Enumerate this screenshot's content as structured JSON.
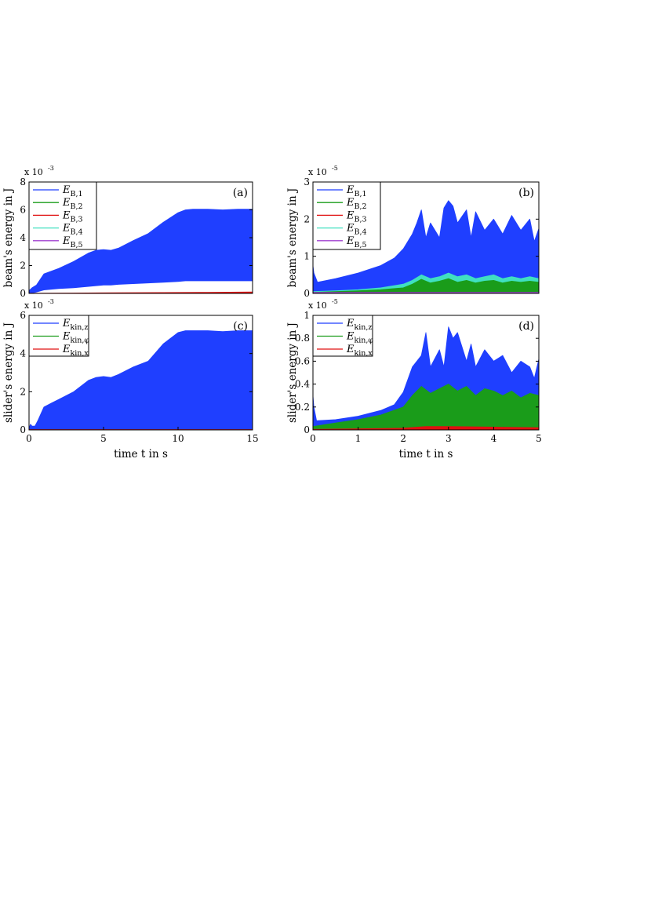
{
  "chart_data": [
    {
      "panel_label": "(a)",
      "type": "area",
      "ylabel": "beam's energy in J",
      "xlabel": "",
      "xlim": [
        0,
        15
      ],
      "ylim": [
        0,
        8
      ],
      "y_multiplier": "x 10",
      "y_exponent": "-3",
      "xticks": [],
      "yticks": [
        0,
        2,
        4,
        6,
        8
      ],
      "legend": {
        "placement": "top-left",
        "entries": [
          {
            "base": "E",
            "sub": "B,1",
            "color": "#1f3fff"
          },
          {
            "base": "E",
            "sub": "B,2",
            "color": "#1a9c1a"
          },
          {
            "base": "E",
            "sub": "B,3",
            "color": "#e01010"
          },
          {
            "base": "E",
            "sub": "B,4",
            "color": "#40e0c0"
          },
          {
            "base": "E",
            "sub": "B,5",
            "color": "#a040d0"
          }
        ]
      },
      "series": [
        {
          "legend_index": 0,
          "x": [
            0,
            0.2,
            0.5,
            1,
            1.5,
            2,
            3,
            4,
            4.5,
            5,
            5.5,
            6,
            7,
            8,
            9,
            10,
            10.5,
            11,
            12,
            13,
            14,
            15
          ],
          "upper": [
            0.2,
            0.4,
            0.6,
            1.4,
            1.6,
            1.8,
            2.3,
            2.9,
            3.1,
            3.15,
            3.1,
            3.25,
            3.8,
            4.3,
            5.1,
            5.8,
            6.0,
            6.05,
            6.05,
            6.0,
            6.05,
            6.05
          ],
          "lower": [
            0.0,
            0.02,
            0.1,
            0.25,
            0.3,
            0.35,
            0.4,
            0.5,
            0.55,
            0.6,
            0.6,
            0.65,
            0.7,
            0.75,
            0.8,
            0.85,
            0.9,
            0.9,
            0.9,
            0.9,
            0.9,
            0.9
          ]
        },
        {
          "legend_index": 2,
          "x": [
            0,
            3,
            6,
            9,
            12,
            15
          ],
          "upper": [
            0.01,
            0.03,
            0.05,
            0.06,
            0.08,
            0.1
          ],
          "lower": [
            0,
            0,
            0,
            0,
            0,
            0
          ]
        }
      ]
    },
    {
      "panel_label": "(b)",
      "type": "area",
      "ylabel": "beam's energy in J",
      "xlabel": "",
      "xlim": [
        0,
        5
      ],
      "ylim": [
        0,
        3
      ],
      "y_multiplier": "x 10",
      "y_exponent": "-5",
      "xticks": [],
      "yticks": [
        0,
        1,
        2,
        3
      ],
      "legend": {
        "placement": "top-left",
        "entries": [
          {
            "base": "E",
            "sub": "B,1",
            "color": "#1f3fff"
          },
          {
            "base": "E",
            "sub": "B,2",
            "color": "#1a9c1a"
          },
          {
            "base": "E",
            "sub": "B,3",
            "color": "#e01010"
          },
          {
            "base": "E",
            "sub": "B,4",
            "color": "#40e0c0"
          },
          {
            "base": "E",
            "sub": "B,5",
            "color": "#a040d0"
          }
        ]
      },
      "series": [
        {
          "legend_index": 0,
          "x": [
            0,
            0.02,
            0.1,
            0.5,
            1,
            1.5,
            1.8,
            2,
            2.2,
            2.3,
            2.4,
            2.5,
            2.6,
            2.8,
            2.9,
            3.0,
            3.1,
            3.2,
            3.4,
            3.5,
            3.6,
            3.8,
            4.0,
            4.2,
            4.4,
            4.6,
            4.8,
            4.9,
            5.0
          ],
          "upper": [
            0.75,
            0.55,
            0.3,
            0.4,
            0.55,
            0.75,
            0.95,
            1.2,
            1.6,
            1.9,
            2.25,
            1.5,
            1.9,
            1.5,
            2.3,
            2.5,
            2.35,
            1.9,
            2.25,
            1.5,
            2.2,
            1.7,
            2.0,
            1.6,
            2.1,
            1.7,
            2.0,
            1.4,
            1.75
          ],
          "lower": [
            0,
            0,
            0,
            0,
            0,
            0,
            0,
            0,
            0,
            0,
            0,
            0,
            0,
            0,
            0,
            0,
            0,
            0,
            0,
            0,
            0,
            0,
            0,
            0,
            0,
            0,
            0,
            0,
            0
          ]
        },
        {
          "legend_index": 3,
          "x": [
            0,
            0.5,
            1,
            1.5,
            2,
            2.2,
            2.4,
            2.6,
            2.8,
            3.0,
            3.2,
            3.4,
            3.6,
            3.8,
            4.0,
            4.2,
            4.4,
            4.6,
            4.8,
            5.0
          ],
          "upper": [
            0.05,
            0.07,
            0.1,
            0.15,
            0.25,
            0.35,
            0.5,
            0.4,
            0.45,
            0.55,
            0.45,
            0.5,
            0.4,
            0.45,
            0.5,
            0.4,
            0.45,
            0.4,
            0.45,
            0.4
          ],
          "lower": [
            0,
            0,
            0,
            0,
            0,
            0,
            0,
            0,
            0,
            0,
            0,
            0,
            0,
            0,
            0,
            0,
            0,
            0,
            0,
            0
          ]
        },
        {
          "legend_index": 1,
          "x": [
            0,
            0.5,
            1,
            1.5,
            2,
            2.2,
            2.4,
            2.6,
            2.8,
            3.0,
            3.2,
            3.4,
            3.6,
            3.8,
            4.0,
            4.2,
            4.4,
            4.6,
            4.8,
            5.0
          ],
          "upper": [
            0.03,
            0.05,
            0.07,
            0.1,
            0.15,
            0.25,
            0.38,
            0.28,
            0.33,
            0.4,
            0.3,
            0.35,
            0.28,
            0.33,
            0.35,
            0.28,
            0.33,
            0.3,
            0.33,
            0.3
          ],
          "lower": [
            0,
            0,
            0,
            0,
            0,
            0,
            0,
            0,
            0,
            0,
            0,
            0,
            0,
            0,
            0,
            0,
            0,
            0,
            0,
            0
          ]
        },
        {
          "legend_index": 4,
          "x": [
            0,
            5
          ],
          "upper": [
            0.03,
            0.03
          ],
          "lower": [
            0,
            0
          ]
        }
      ]
    },
    {
      "panel_label": "(c)",
      "type": "area",
      "ylabel": "slider's energy in J",
      "xlabel": "time t in s",
      "xlim": [
        0,
        15
      ],
      "ylim": [
        0,
        6
      ],
      "y_multiplier": "x 10",
      "y_exponent": "-3",
      "xticks": [
        0,
        5,
        10,
        15
      ],
      "yticks": [
        0,
        2,
        4,
        6
      ],
      "legend": {
        "placement": "top-left",
        "entries": [
          {
            "base": "E",
            "sub": "kin,z",
            "color": "#1f3fff"
          },
          {
            "base": "E",
            "sub": "kin,φ",
            "color": "#1a9c1a"
          },
          {
            "base": "E",
            "sub": "kin,x",
            "color": "#e01010"
          }
        ]
      },
      "series": [
        {
          "legend_index": 0,
          "x": [
            0,
            0.1,
            0.2,
            0.4,
            0.6,
            1,
            1.5,
            2,
            3,
            4,
            4.5,
            5,
            5.5,
            6,
            7,
            8,
            9,
            10,
            10.5,
            11,
            12,
            13,
            14,
            15
          ],
          "upper": [
            0.1,
            0.3,
            0.2,
            0.2,
            0.5,
            1.2,
            1.4,
            1.6,
            2.0,
            2.6,
            2.75,
            2.8,
            2.75,
            2.9,
            3.3,
            3.6,
            4.5,
            5.1,
            5.2,
            5.2,
            5.2,
            5.15,
            5.2,
            5.2
          ],
          "lower": [
            0,
            0,
            0,
            0,
            0,
            0,
            0,
            0,
            0,
            0,
            0,
            0,
            0,
            0,
            0,
            0,
            0,
            0,
            0,
            0,
            0,
            0,
            0,
            0
          ]
        },
        {
          "legend_index": 2,
          "x": [
            0,
            15
          ],
          "upper": [
            0.02,
            0.02
          ],
          "lower": [
            0,
            0
          ]
        }
      ]
    },
    {
      "panel_label": "(d)",
      "type": "area",
      "ylabel": "slider's energy in J",
      "xlabel": "time t in s",
      "xlim": [
        0,
        5
      ],
      "ylim": [
        0,
        1
      ],
      "y_multiplier": "x 10",
      "y_exponent": "-5",
      "xticks": [
        0,
        1,
        2,
        3,
        4,
        5
      ],
      "yticks": [
        0,
        0.2,
        0.4,
        0.6,
        0.8,
        1
      ],
      "legend": {
        "placement": "top-left",
        "entries": [
          {
            "base": "E",
            "sub": "kin,z",
            "color": "#1f3fff"
          },
          {
            "base": "E",
            "sub": "kin,φ",
            "color": "#1a9c1a"
          },
          {
            "base": "E",
            "sub": "kin,x",
            "color": "#e01010"
          }
        ]
      },
      "series": [
        {
          "legend_index": 0,
          "x": [
            0,
            0.02,
            0.08,
            0.5,
            1,
            1.5,
            1.8,
            2,
            2.2,
            2.4,
            2.5,
            2.6,
            2.8,
            2.9,
            3.0,
            3.1,
            3.2,
            3.4,
            3.5,
            3.6,
            3.8,
            4.0,
            4.2,
            4.4,
            4.6,
            4.8,
            4.9,
            5.0
          ],
          "upper": [
            0.3,
            0.2,
            0.08,
            0.09,
            0.12,
            0.17,
            0.22,
            0.33,
            0.55,
            0.65,
            0.85,
            0.55,
            0.7,
            0.55,
            0.9,
            0.8,
            0.85,
            0.6,
            0.75,
            0.55,
            0.7,
            0.6,
            0.65,
            0.5,
            0.6,
            0.55,
            0.45,
            0.62
          ],
          "lower": [
            0,
            0,
            0,
            0,
            0,
            0,
            0,
            0,
            0,
            0,
            0,
            0,
            0,
            0,
            0,
            0,
            0,
            0,
            0,
            0,
            0,
            0,
            0,
            0,
            0,
            0,
            0,
            0
          ]
        },
        {
          "legend_index": 1,
          "x": [
            0,
            0.5,
            1,
            1.5,
            2,
            2.2,
            2.4,
            2.6,
            2.8,
            3.0,
            3.2,
            3.4,
            3.6,
            3.8,
            4.0,
            4.2,
            4.4,
            4.6,
            4.8,
            5.0
          ],
          "upper": [
            0.03,
            0.06,
            0.09,
            0.13,
            0.2,
            0.3,
            0.38,
            0.32,
            0.36,
            0.4,
            0.34,
            0.38,
            0.3,
            0.36,
            0.34,
            0.3,
            0.34,
            0.28,
            0.32,
            0.3
          ],
          "lower": [
            0,
            0,
            0,
            0,
            0,
            0,
            0,
            0,
            0,
            0,
            0,
            0,
            0,
            0,
            0,
            0,
            0,
            0,
            0,
            0
          ]
        },
        {
          "legend_index": 2,
          "x": [
            0,
            2,
            2.5,
            3,
            4,
            5
          ],
          "upper": [
            0.005,
            0.015,
            0.03,
            0.03,
            0.025,
            0.02
          ],
          "lower": [
            0,
            0,
            0,
            0,
            0,
            0
          ]
        }
      ]
    }
  ]
}
